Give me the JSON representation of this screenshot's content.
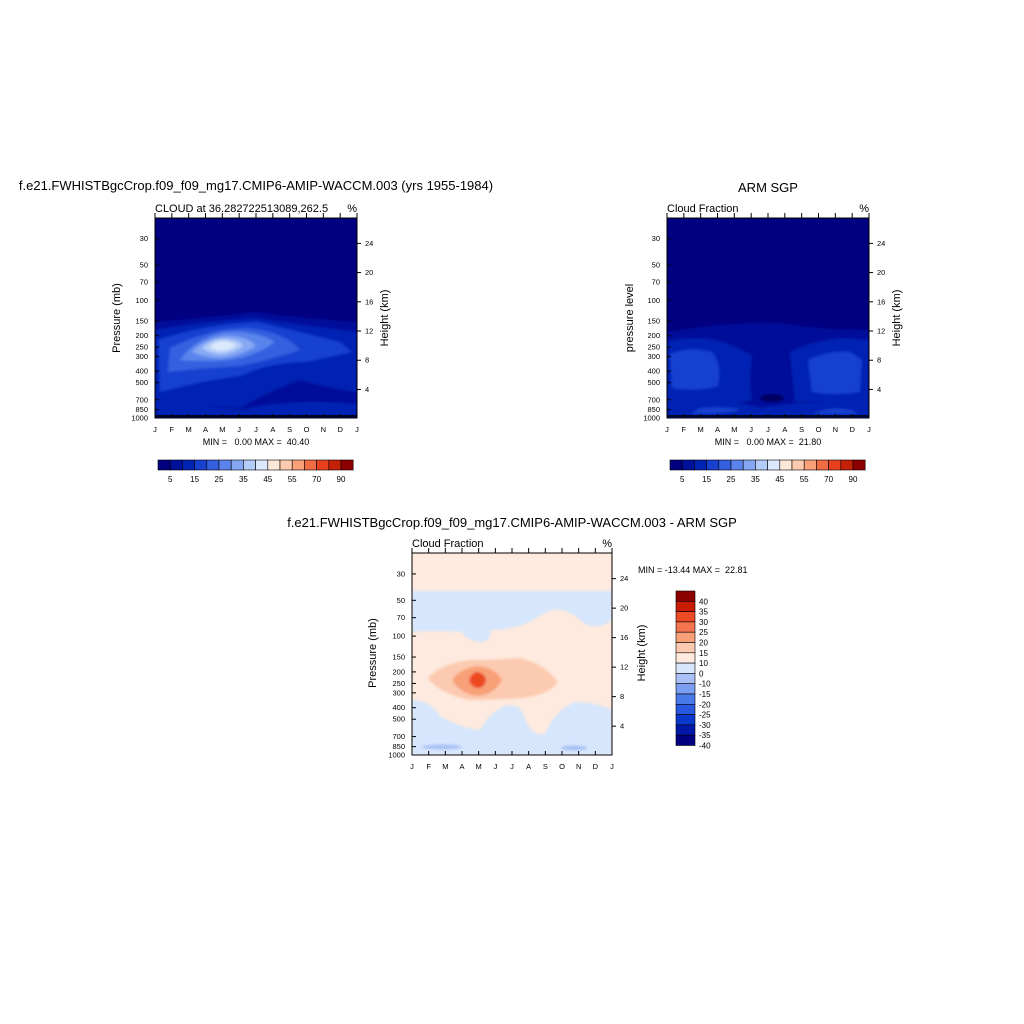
{
  "colors": {
    "pos": [
      "#000080",
      "#00109a",
      "#0024b4",
      "#1840d0",
      "#3460e0",
      "#5a84ec",
      "#86a8f4",
      "#b4ccf8",
      "#dce8fc",
      "#fde8d8",
      "#fccab0",
      "#f8a078",
      "#f06c44",
      "#e8401c",
      "#c42008",
      "#8c0000"
    ],
    "diff": [
      "#000080",
      "#0018a8",
      "#0a38cc",
      "#2858e0",
      "#4a7aea",
      "#7c9ef2",
      "#a8c0f6",
      "#d6e6fc",
      "#feeade",
      "#fccab0",
      "#f8a078",
      "#f47450",
      "#ec4a24",
      "#c81c04",
      "#8c0000"
    ]
  },
  "panels": [
    {
      "id": "model",
      "title": "f.e21.FWHISTBgcCrop.f09_f09_mg17.CMIP6-AMIP-WACCM.003 (yrs 1955-1984)",
      "subtitle": "CLOUD at 36.282722513089,262.5",
      "units": "%",
      "ylabel": "Pressure (mb)",
      "ylabel_right": "Height (km)",
      "stats": "MIN =   0.00 MAX =  40.40"
    },
    {
      "id": "obs",
      "title": "ARM SGP",
      "subtitle": "Cloud Fraction",
      "units": "%",
      "ylabel": "pressure level",
      "ylabel_right": "Height (km)",
      "stats": "MIN =   0.00 MAX =  21.80"
    },
    {
      "id": "diff",
      "title": "f.e21.FWHISTBgcCrop.f09_f09_mg17.CMIP6-AMIP-WACCM.003 - ARM SGP",
      "subtitle": "Cloud Fraction",
      "units": "%",
      "ylabel": "Pressure (mb)",
      "ylabel_right": "Height (km)",
      "stats": "MIN = -13.44 MAX =  22.81"
    }
  ],
  "chart_data": [
    {
      "type": "heatmap",
      "title": "f.e21.FWHISTBgcCrop.f09_f09_mg17.CMIP6-AMIP-WACCM.003 (yrs 1955-1984)",
      "subtitle": "CLOUD at 36.282722513089,262.5",
      "x": [
        "J",
        "F",
        "M",
        "A",
        "M",
        "J",
        "J",
        "A",
        "S",
        "O",
        "N",
        "D",
        "J"
      ],
      "y_pressure_ticks": [
        30,
        50,
        70,
        100,
        150,
        200,
        250,
        300,
        400,
        500,
        700,
        850,
        1000
      ],
      "y_height_ticks": [
        24,
        20,
        16,
        12,
        8,
        4
      ],
      "contour_levels": [
        5,
        15,
        25,
        35,
        45,
        55,
        70,
        90
      ],
      "colorbar_labels": [
        "5",
        "15",
        "25",
        "35",
        "45",
        "55",
        "70",
        "90"
      ],
      "min": 0.0,
      "max": 40.4,
      "xlabel": "",
      "ylabel": "Pressure (mb)",
      "ylabel_right": "Height (km)"
    },
    {
      "type": "heatmap",
      "title": "ARM SGP",
      "subtitle": "Cloud Fraction",
      "x": [
        "J",
        "F",
        "M",
        "A",
        "M",
        "J",
        "J",
        "A",
        "S",
        "O",
        "N",
        "D",
        "J"
      ],
      "y_pressure_ticks": [
        30,
        50,
        70,
        100,
        150,
        200,
        250,
        300,
        400,
        500,
        700,
        850,
        1000
      ],
      "y_height_ticks": [
        24,
        20,
        16,
        12,
        8,
        4
      ],
      "contour_levels": [
        5,
        15,
        25,
        35,
        45,
        55,
        70,
        90
      ],
      "colorbar_labels": [
        "5",
        "15",
        "25",
        "35",
        "45",
        "55",
        "70",
        "90"
      ],
      "min": 0.0,
      "max": 21.8,
      "xlabel": "",
      "ylabel": "pressure level",
      "ylabel_right": "Height (km)"
    },
    {
      "type": "heatmap",
      "title": "f.e21.FWHISTBgcCrop.f09_f09_mg17.CMIP6-AMIP-WACCM.003 - ARM SGP",
      "subtitle": "Cloud Fraction",
      "x": [
        "J",
        "F",
        "M",
        "A",
        "M",
        "J",
        "J",
        "A",
        "S",
        "O",
        "N",
        "D",
        "J"
      ],
      "y_pressure_ticks": [
        30,
        50,
        70,
        100,
        150,
        200,
        250,
        300,
        400,
        500,
        700,
        850,
        1000
      ],
      "y_height_ticks": [
        24,
        20,
        16,
        12,
        8,
        4
      ],
      "contour_levels": [
        40,
        35,
        30,
        25,
        20,
        15,
        10,
        0,
        -10,
        -15,
        -20,
        -25,
        -30,
        -35,
        -40
      ],
      "colorbar_labels": [
        "40",
        "35",
        "30",
        "25",
        "20",
        "15",
        "10",
        "0",
        "-10",
        "-15",
        "-20",
        "-25",
        "-30",
        "-35",
        "-40"
      ],
      "min": -13.44,
      "max": 22.81,
      "xlabel": "",
      "ylabel": "Pressure (mb)",
      "ylabel_right": "Height (km)"
    }
  ]
}
